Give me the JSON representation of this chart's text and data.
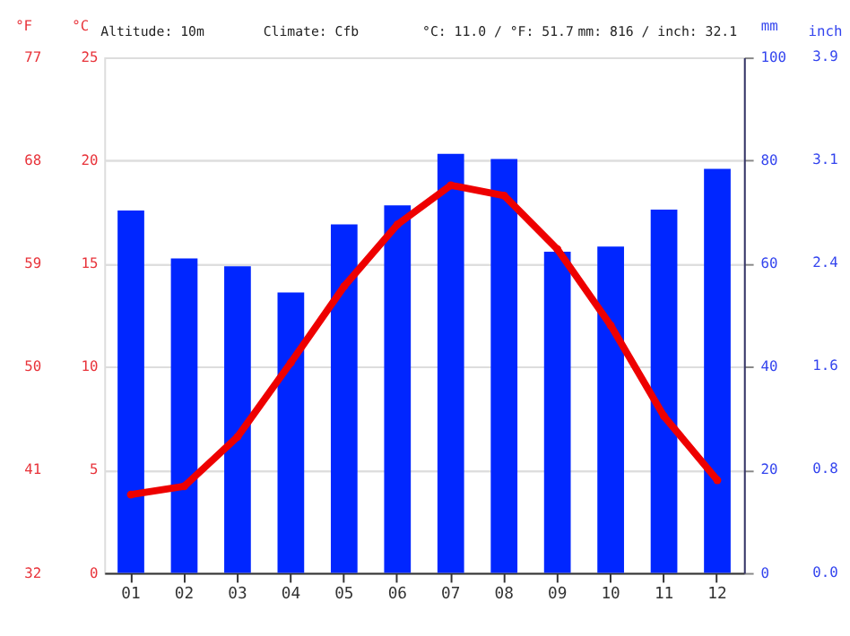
{
  "chart_data": {
    "type": "bar",
    "annotations": [
      "Altitude: 10m",
      "Climate: Cfb",
      "°C: 11.0 / °F: 51.7",
      "mm: 816 / inch: 32.1",
      "inch",
      "0.0",
      "0.8",
      "1.6",
      "2.4",
      "3.1",
      "3.9"
    ],
    "categories": [
      "01",
      "02",
      "03",
      "04",
      "05",
      "06",
      "07",
      "08",
      "09",
      "10",
      "11",
      "12"
    ],
    "series": [
      {
        "axis": "y2",
        "color": "#0026ff",
        "values": [
          70.3,
          61,
          59.5,
          54.4,
          67.6,
          71.3,
          81.3,
          80.3,
          62.3,
          63.3,
          70.5,
          78.4
        ]
      },
      {
        "type": "line",
        "axis": "y",
        "color": "#ee0000",
        "values": [
          3.8,
          4.2,
          6.6,
          10.2,
          13.9,
          16.9,
          18.8,
          18.3,
          15.7,
          12.0,
          7.6,
          4.5
        ]
      }
    ],
    "ylabel": "°C",
    "ylim": [
      0,
      25
    ],
    "yticks": [
      0,
      5,
      10,
      15,
      20,
      25
    ],
    "y2label": "mm",
    "y2lim": [
      0,
      100
    ],
    "y2ticks": [
      0,
      20,
      40,
      60,
      80,
      100
    ],
    "y3label": "°F",
    "y3lim": [
      32,
      77
    ],
    "y3ticks": [
      32,
      41,
      50,
      59,
      68,
      77
    ],
    "grid": "y",
    "marker": "circle",
    "line_style": "solid"
  }
}
